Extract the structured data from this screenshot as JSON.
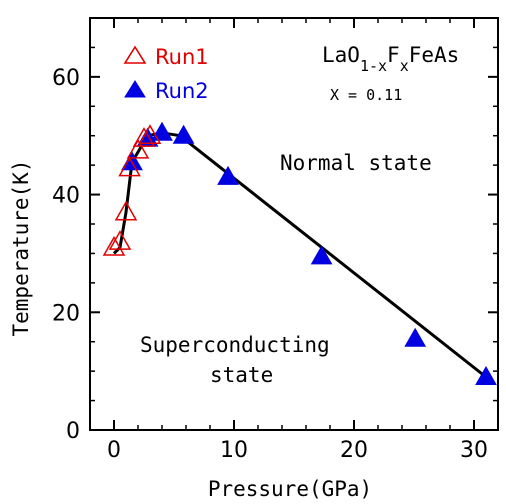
{
  "chart_data": {
    "type": "scatter",
    "xlabel": "Pressure(GPa)",
    "ylabel": "Temperature(K)",
    "xlim": [
      -2,
      32
    ],
    "ylim": [
      0,
      70
    ],
    "xticks": [
      0,
      10,
      20,
      30
    ],
    "yticks": [
      0,
      20,
      40,
      60
    ],
    "x_tick_labels": [
      "0",
      "10",
      "20",
      "30"
    ],
    "y_tick_labels": [
      "0",
      "20",
      "40",
      "60"
    ],
    "grid": false,
    "legend_position": "top-left",
    "series": [
      {
        "name": "Run1",
        "marker": "open-triangle",
        "color": "#e00000",
        "points": [
          [
            0.0,
            31.0
          ],
          [
            0.5,
            32.0
          ],
          [
            1.0,
            37.0
          ],
          [
            1.3,
            44.5
          ],
          [
            2.0,
            47.5
          ],
          [
            2.5,
            49.5
          ],
          [
            3.0,
            50.0
          ]
        ]
      },
      {
        "name": "Run2",
        "marker": "filled-triangle",
        "color": "#0000e0",
        "points": [
          [
            1.5,
            45.5
          ],
          [
            2.8,
            49.5
          ],
          [
            4.0,
            50.5
          ],
          [
            5.8,
            50.0
          ],
          [
            9.5,
            43.0
          ],
          [
            17.3,
            29.5
          ],
          [
            25.1,
            15.5
          ],
          [
            31.0,
            9.0
          ]
        ]
      }
    ],
    "phase_line": [
      [
        0.0,
        30.0
      ],
      [
        0.5,
        31.0
      ],
      [
        1.0,
        37.0
      ],
      [
        1.5,
        45.5
      ],
      [
        2.8,
        50.0
      ],
      [
        4.0,
        50.5
      ],
      [
        5.5,
        50.0
      ],
      [
        31.0,
        9.0
      ]
    ],
    "annotations": {
      "compound": {
        "base1": "LaO",
        "sub1": "1-x",
        "base2": "F",
        "sub2": "x",
        "base3": "FeAs"
      },
      "doping": "X = 0.11",
      "normal": "Normal state",
      "super_line1": "Superconducting",
      "super_line2": "state"
    }
  },
  "colors": {
    "run1": "#e00000",
    "run2": "#0000e0",
    "axis": "#000000",
    "line": "#000000"
  }
}
